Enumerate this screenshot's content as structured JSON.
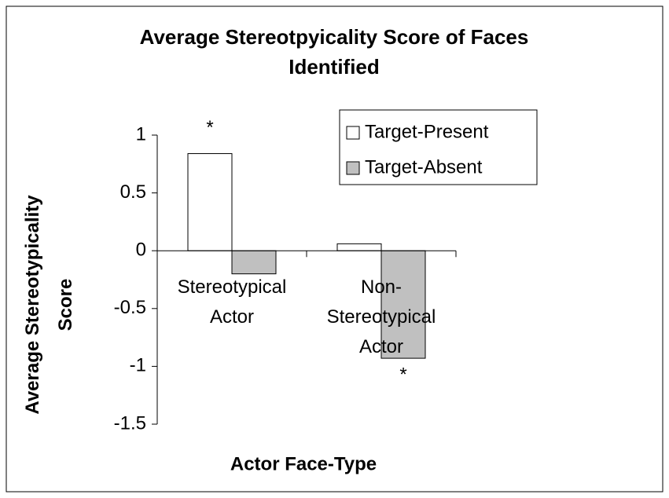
{
  "chart_data": {
    "type": "bar",
    "title": "Average Stereotpyicality Score of Faces Identified",
    "x_label": "Actor Face-Type",
    "y_label": "Average Stereotypicality Score",
    "categories": [
      "Stereotypical Actor",
      "Non-Stereotypical Actor"
    ],
    "series": [
      {
        "name": "Target-Present",
        "color": "#ffffff",
        "values": [
          0.84,
          0.06
        ]
      },
      {
        "name": "Target-Absent",
        "color": "#c0c0c0",
        "values": [
          -0.2,
          -0.93
        ]
      }
    ],
    "ylim": [
      -1.5,
      1
    ],
    "yticks": [
      -1.5,
      -1,
      -0.5,
      0,
      0.5,
      1
    ],
    "annotations": [
      {
        "text": "*",
        "category": 0,
        "series": 0
      },
      {
        "text": "*",
        "category": 1,
        "series": 1
      }
    ],
    "legend": "upper right",
    "grid": false
  }
}
